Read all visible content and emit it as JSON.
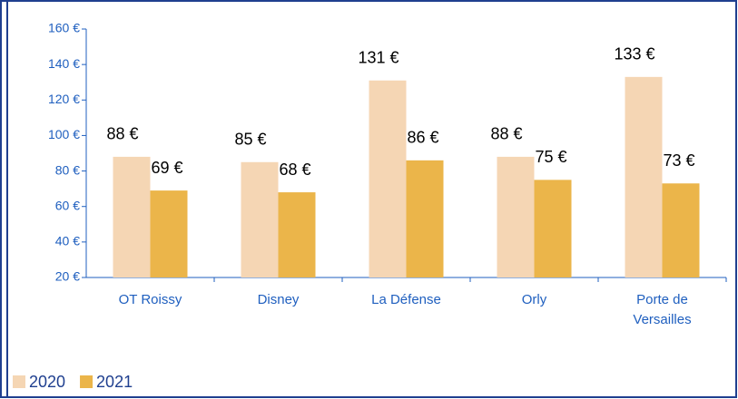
{
  "chart_data": {
    "type": "bar",
    "categories": [
      "OT Roissy",
      "Disney",
      "La Défense",
      "Orly",
      "Porte de Versailles"
    ],
    "series": [
      {
        "name": "2020",
        "color": "#f5d6b4",
        "values": [
          88,
          85,
          131,
          88,
          133
        ],
        "value_labels": [
          "88 €",
          "85 €",
          "131 €",
          "88 €",
          "133 €"
        ]
      },
      {
        "name": "2021",
        "color": "#ebb54a",
        "values": [
          69,
          68,
          86,
          75,
          73
        ],
        "value_labels": [
          "69 €",
          "68 €",
          "86 €",
          "75 €",
          "73 €"
        ]
      }
    ],
    "ylim": [
      20,
      160
    ],
    "yticks": [
      {
        "value": 20,
        "label": "20 €"
      },
      {
        "value": 40,
        "label": "40 €"
      },
      {
        "value": 60,
        "label": "60 €"
      },
      {
        "value": 80,
        "label": "80 €"
      },
      {
        "value": 100,
        "label": "100 €"
      },
      {
        "value": 120,
        "label": "120 €"
      },
      {
        "value": 140,
        "label": "140 €"
      },
      {
        "value": 160,
        "label": "160 €"
      }
    ],
    "grid": false,
    "legend": "bottom-left"
  }
}
